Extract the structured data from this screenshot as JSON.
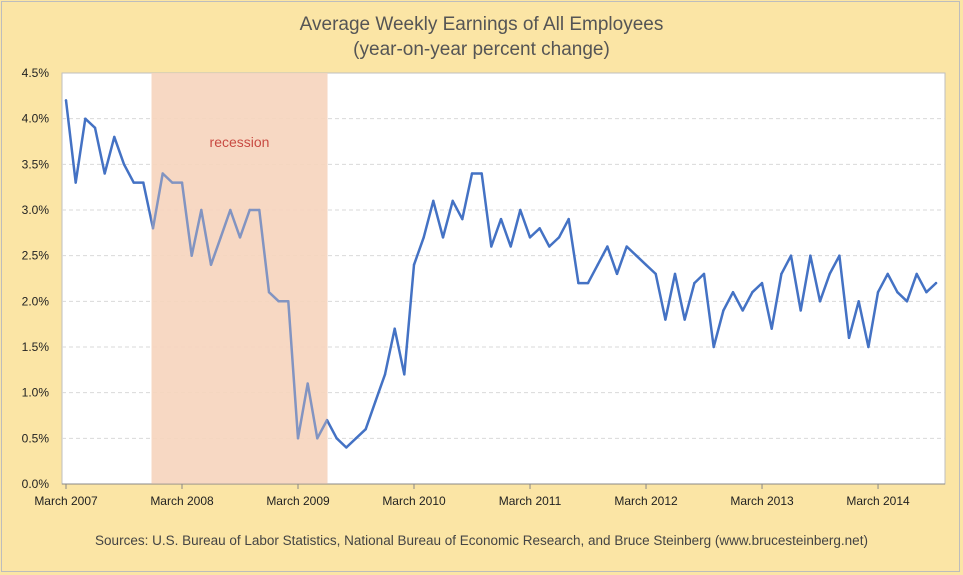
{
  "chart_data": {
    "type": "line",
    "title": "Average Weekly Earnings of All Employees",
    "subtitle": "(year-on-year percent change)",
    "source": "Sources: U.S. Bureau of Labor Statistics, National Bureau of Economic Research, and Bruce Steinberg (www.brucesteinberg.net)",
    "xlabel": "",
    "ylabel": "",
    "x_tick_labels": [
      "March 2007",
      "March 2008",
      "March 2009",
      "March 2010",
      "March 2011",
      "March 2012",
      "March 2013",
      "March 2014"
    ],
    "y_tick_labels": [
      "0.0%",
      "0.5%",
      "1.0%",
      "1.5%",
      "2.0%",
      "2.5%",
      "3.0%",
      "3.5%",
      "4.0%",
      "4.5%"
    ],
    "ylim": [
      0,
      4.5
    ],
    "x_start": "2007-03",
    "grid": true,
    "recession": {
      "label": "recession",
      "start": "2007-12",
      "end": "2009-06",
      "color": "#f7d5bd"
    },
    "series": [
      {
        "color": "#4472c4",
        "values": [
          4.2,
          3.3,
          4.0,
          3.9,
          3.4,
          3.8,
          3.5,
          3.3,
          3.3,
          2.8,
          3.4,
          3.3,
          3.3,
          2.5,
          3.0,
          2.4,
          2.7,
          3.0,
          2.7,
          3.0,
          3.0,
          2.1,
          2.0,
          2.0,
          0.5,
          1.1,
          0.5,
          0.7,
          0.5,
          0.4,
          0.5,
          0.6,
          0.9,
          1.2,
          1.7,
          1.2,
          2.4,
          2.7,
          3.1,
          2.7,
          3.1,
          2.9,
          3.4,
          3.4,
          2.6,
          2.9,
          2.6,
          3.0,
          2.7,
          2.8,
          2.6,
          2.7,
          2.9,
          2.2,
          2.2,
          2.4,
          2.6,
          2.3,
          2.6,
          2.5,
          2.4,
          2.3,
          1.8,
          2.3,
          1.8,
          2.2,
          2.3,
          1.5,
          1.9,
          2.1,
          1.9,
          2.1,
          2.2,
          1.7,
          2.3,
          2.5,
          1.9,
          2.5,
          2.0,
          2.3,
          2.5,
          1.6,
          2.0,
          1.5,
          2.1,
          2.3,
          2.1,
          2.0,
          2.3,
          2.1,
          2.2
        ]
      }
    ]
  }
}
